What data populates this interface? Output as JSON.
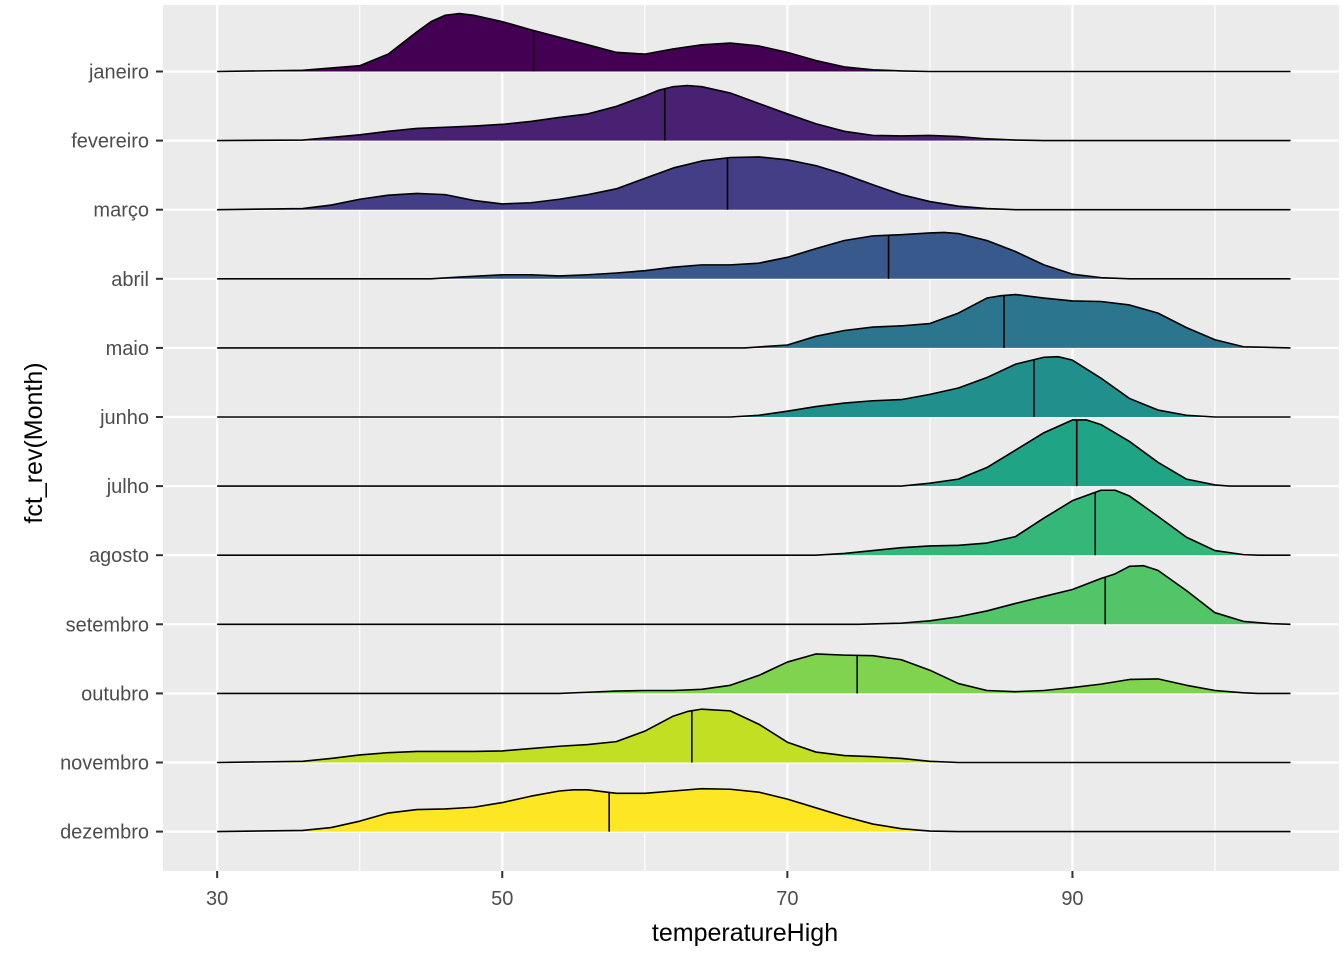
{
  "chart_data": {
    "type": "ridgeline",
    "xlabel": "temperatureHigh",
    "ylabel": "fct_rev(Month)",
    "xlim": [
      26.2,
      108.7
    ],
    "xticks": [
      30,
      50,
      70,
      90
    ],
    "grid": true,
    "legend": "none",
    "series": [
      {
        "name": "janeiro",
        "color": "#440154",
        "median": 52.2,
        "range": [
          30,
          105.3
        ],
        "density": [
          [
            30,
            0
          ],
          [
            36,
            0.02
          ],
          [
            40,
            0.1
          ],
          [
            42,
            0.3
          ],
          [
            44,
            0.68
          ],
          [
            45,
            0.86
          ],
          [
            46,
            0.97
          ],
          [
            47,
            1
          ],
          [
            48,
            0.97
          ],
          [
            50,
            0.86
          ],
          [
            52,
            0.72
          ],
          [
            54,
            0.59
          ],
          [
            56,
            0.46
          ],
          [
            58,
            0.33
          ],
          [
            60,
            0.3
          ],
          [
            62,
            0.39
          ],
          [
            64,
            0.46
          ],
          [
            66,
            0.49
          ],
          [
            68,
            0.44
          ],
          [
            70,
            0.33
          ],
          [
            72,
            0.19
          ],
          [
            74,
            0.08
          ],
          [
            76,
            0.03
          ],
          [
            78,
            0.01
          ],
          [
            80,
            0
          ],
          [
            105.3,
            0
          ]
        ]
      },
      {
        "name": "fevereiro",
        "color": "#482173",
        "median": 61.4,
        "range": [
          30,
          105.3
        ],
        "density": [
          [
            30,
            0
          ],
          [
            36,
            0.01
          ],
          [
            40,
            0.1
          ],
          [
            42,
            0.16
          ],
          [
            44,
            0.21
          ],
          [
            46,
            0.23
          ],
          [
            48,
            0.25
          ],
          [
            50,
            0.28
          ],
          [
            52,
            0.33
          ],
          [
            54,
            0.4
          ],
          [
            56,
            0.46
          ],
          [
            58,
            0.59
          ],
          [
            60,
            0.77
          ],
          [
            61,
            0.87
          ],
          [
            62,
            0.93
          ],
          [
            63,
            0.95
          ],
          [
            64,
            0.93
          ],
          [
            66,
            0.82
          ],
          [
            68,
            0.64
          ],
          [
            70,
            0.46
          ],
          [
            72,
            0.29
          ],
          [
            74,
            0.16
          ],
          [
            76,
            0.09
          ],
          [
            78,
            0.08
          ],
          [
            80,
            0.09
          ],
          [
            82,
            0.07
          ],
          [
            84,
            0.03
          ],
          [
            86,
            0.01
          ],
          [
            88,
            0
          ],
          [
            105.3,
            0
          ]
        ]
      },
      {
        "name": "março",
        "color": "#433E85",
        "median": 65.8,
        "range": [
          30,
          105.3
        ],
        "density": [
          [
            30,
            0
          ],
          [
            36,
            0.02
          ],
          [
            38,
            0.08
          ],
          [
            40,
            0.18
          ],
          [
            42,
            0.25
          ],
          [
            44,
            0.28
          ],
          [
            46,
            0.26
          ],
          [
            48,
            0.16
          ],
          [
            50,
            0.1
          ],
          [
            52,
            0.12
          ],
          [
            54,
            0.18
          ],
          [
            56,
            0.26
          ],
          [
            58,
            0.36
          ],
          [
            60,
            0.54
          ],
          [
            62,
            0.72
          ],
          [
            64,
            0.84
          ],
          [
            66,
            0.9
          ],
          [
            68,
            0.91
          ],
          [
            70,
            0.86
          ],
          [
            72,
            0.76
          ],
          [
            74,
            0.61
          ],
          [
            76,
            0.43
          ],
          [
            78,
            0.26
          ],
          [
            80,
            0.14
          ],
          [
            82,
            0.06
          ],
          [
            84,
            0.02
          ],
          [
            86,
            0
          ],
          [
            105.3,
            0
          ]
        ]
      },
      {
        "name": "abril",
        "color": "#38598C",
        "median": 77.1,
        "range": [
          30,
          105.3
        ],
        "density": [
          [
            30,
            0
          ],
          [
            45,
            0
          ],
          [
            47,
            0.03
          ],
          [
            50,
            0.07
          ],
          [
            52,
            0.07
          ],
          [
            54,
            0.05
          ],
          [
            56,
            0.07
          ],
          [
            58,
            0.1
          ],
          [
            60,
            0.14
          ],
          [
            62,
            0.2
          ],
          [
            64,
            0.24
          ],
          [
            66,
            0.24
          ],
          [
            68,
            0.27
          ],
          [
            70,
            0.37
          ],
          [
            72,
            0.52
          ],
          [
            74,
            0.66
          ],
          [
            76,
            0.74
          ],
          [
            78,
            0.76
          ],
          [
            80,
            0.79
          ],
          [
            81,
            0.8
          ],
          [
            82,
            0.78
          ],
          [
            84,
            0.66
          ],
          [
            86,
            0.47
          ],
          [
            88,
            0.24
          ],
          [
            90,
            0.08
          ],
          [
            92,
            0.02
          ],
          [
            94,
            0
          ],
          [
            105.3,
            0
          ]
        ]
      },
      {
        "name": "maio",
        "color": "#2B758E",
        "median": 85.2,
        "range": [
          30,
          105.3
        ],
        "density": [
          [
            30,
            0
          ],
          [
            67,
            0
          ],
          [
            70,
            0.05
          ],
          [
            72,
            0.2
          ],
          [
            74,
            0.3
          ],
          [
            76,
            0.36
          ],
          [
            78,
            0.38
          ],
          [
            80,
            0.42
          ],
          [
            82,
            0.6
          ],
          [
            84,
            0.86
          ],
          [
            85,
            0.9
          ],
          [
            86,
            0.92
          ],
          [
            88,
            0.86
          ],
          [
            90,
            0.81
          ],
          [
            92,
            0.8
          ],
          [
            94,
            0.74
          ],
          [
            96,
            0.6
          ],
          [
            98,
            0.35
          ],
          [
            100,
            0.14
          ],
          [
            102,
            0.02
          ],
          [
            105.3,
            0
          ]
        ]
      },
      {
        "name": "junho",
        "color": "#21908C",
        "median": 87.3,
        "range": [
          30,
          105.3
        ],
        "density": [
          [
            30,
            0
          ],
          [
            66,
            0
          ],
          [
            68,
            0.03
          ],
          [
            70,
            0.1
          ],
          [
            72,
            0.18
          ],
          [
            74,
            0.24
          ],
          [
            76,
            0.28
          ],
          [
            78,
            0.3
          ],
          [
            80,
            0.39
          ],
          [
            82,
            0.5
          ],
          [
            84,
            0.68
          ],
          [
            86,
            0.91
          ],
          [
            88,
            1.03
          ],
          [
            89,
            1.04
          ],
          [
            90,
            0.98
          ],
          [
            92,
            0.67
          ],
          [
            94,
            0.32
          ],
          [
            96,
            0.12
          ],
          [
            98,
            0.03
          ],
          [
            100,
            0
          ],
          [
            105.3,
            0
          ]
        ]
      },
      {
        "name": "julho",
        "color": "#20A486",
        "median": 90.3,
        "range": [
          30,
          105.3
        ],
        "density": [
          [
            30,
            0
          ],
          [
            78,
            0
          ],
          [
            80,
            0.05
          ],
          [
            82,
            0.12
          ],
          [
            84,
            0.32
          ],
          [
            86,
            0.62
          ],
          [
            88,
            0.92
          ],
          [
            90,
            1.14
          ],
          [
            91,
            1.14
          ],
          [
            92,
            1.06
          ],
          [
            94,
            0.77
          ],
          [
            96,
            0.41
          ],
          [
            98,
            0.12
          ],
          [
            100,
            0.02
          ],
          [
            101,
            0
          ],
          [
            105.3,
            0
          ]
        ]
      },
      {
        "name": "agosto",
        "color": "#35B779",
        "median": 91.6,
        "range": [
          30,
          105.3
        ],
        "density": [
          [
            30,
            0
          ],
          [
            72,
            0
          ],
          [
            74,
            0.03
          ],
          [
            76,
            0.08
          ],
          [
            78,
            0.13
          ],
          [
            80,
            0.16
          ],
          [
            82,
            0.17
          ],
          [
            84,
            0.21
          ],
          [
            86,
            0.32
          ],
          [
            88,
            0.64
          ],
          [
            90,
            0.94
          ],
          [
            92,
            1.12
          ],
          [
            93,
            1.12
          ],
          [
            94,
            1.02
          ],
          [
            96,
            0.67
          ],
          [
            98,
            0.31
          ],
          [
            100,
            0.08
          ],
          [
            102,
            0.01
          ],
          [
            103,
            0
          ],
          [
            105.3,
            0
          ]
        ]
      },
      {
        "name": "setembro",
        "color": "#53C569",
        "median": 92.3,
        "range": [
          30,
          105.3
        ],
        "density": [
          [
            30,
            0
          ],
          [
            75,
            0
          ],
          [
            78,
            0.02
          ],
          [
            80,
            0.06
          ],
          [
            82,
            0.13
          ],
          [
            84,
            0.23
          ],
          [
            86,
            0.36
          ],
          [
            88,
            0.48
          ],
          [
            90,
            0.6
          ],
          [
            92,
            0.79
          ],
          [
            93,
            0.87
          ],
          [
            94,
            1.0
          ],
          [
            95,
            1.01
          ],
          [
            96,
            0.93
          ],
          [
            98,
            0.58
          ],
          [
            100,
            0.2
          ],
          [
            102,
            0.05
          ],
          [
            104,
            0.01
          ],
          [
            105.3,
            0
          ]
        ]
      },
      {
        "name": "outubro",
        "color": "#7FD34E",
        "median": 74.9,
        "range": [
          30,
          105.3
        ],
        "density": [
          [
            30,
            0
          ],
          [
            54,
            0
          ],
          [
            56,
            0.02
          ],
          [
            58,
            0.04
          ],
          [
            60,
            0.05
          ],
          [
            62,
            0.05
          ],
          [
            64,
            0.07
          ],
          [
            66,
            0.14
          ],
          [
            68,
            0.31
          ],
          [
            70,
            0.54
          ],
          [
            72,
            0.68
          ],
          [
            74,
            0.66
          ],
          [
            76,
            0.65
          ],
          [
            78,
            0.58
          ],
          [
            80,
            0.4
          ],
          [
            82,
            0.17
          ],
          [
            84,
            0.05
          ],
          [
            86,
            0.03
          ],
          [
            88,
            0.05
          ],
          [
            90,
            0.1
          ],
          [
            92,
            0.16
          ],
          [
            94,
            0.24
          ],
          [
            96,
            0.25
          ],
          [
            98,
            0.14
          ],
          [
            100,
            0.05
          ],
          [
            102,
            0.01
          ],
          [
            103,
            0
          ],
          [
            105.3,
            0
          ]
        ]
      },
      {
        "name": "novembro",
        "color": "#C2DF23",
        "median": 63.3,
        "range": [
          30,
          105.3
        ],
        "density": [
          [
            30,
            0
          ],
          [
            36,
            0.02
          ],
          [
            38,
            0.07
          ],
          [
            40,
            0.13
          ],
          [
            42,
            0.17
          ],
          [
            44,
            0.19
          ],
          [
            46,
            0.19
          ],
          [
            48,
            0.19
          ],
          [
            50,
            0.2
          ],
          [
            52,
            0.24
          ],
          [
            54,
            0.28
          ],
          [
            56,
            0.31
          ],
          [
            58,
            0.36
          ],
          [
            60,
            0.54
          ],
          [
            62,
            0.8
          ],
          [
            63,
            0.88
          ],
          [
            64,
            0.92
          ],
          [
            66,
            0.89
          ],
          [
            68,
            0.66
          ],
          [
            70,
            0.35
          ],
          [
            72,
            0.18
          ],
          [
            74,
            0.12
          ],
          [
            76,
            0.1
          ],
          [
            78,
            0.07
          ],
          [
            80,
            0.02
          ],
          [
            82,
            0
          ],
          [
            105.3,
            0
          ]
        ]
      },
      {
        "name": "dezembro",
        "color": "#FDE725",
        "median": 57.5,
        "range": [
          30,
          105.3
        ],
        "density": [
          [
            30,
            0
          ],
          [
            36,
            0.02
          ],
          [
            38,
            0.07
          ],
          [
            40,
            0.18
          ],
          [
            42,
            0.32
          ],
          [
            44,
            0.38
          ],
          [
            46,
            0.39
          ],
          [
            48,
            0.42
          ],
          [
            50,
            0.5
          ],
          [
            52,
            0.61
          ],
          [
            54,
            0.7
          ],
          [
            55,
            0.72
          ],
          [
            56,
            0.72
          ],
          [
            58,
            0.66
          ],
          [
            60,
            0.66
          ],
          [
            62,
            0.7
          ],
          [
            64,
            0.74
          ],
          [
            66,
            0.73
          ],
          [
            68,
            0.68
          ],
          [
            70,
            0.56
          ],
          [
            72,
            0.41
          ],
          [
            74,
            0.26
          ],
          [
            76,
            0.13
          ],
          [
            78,
            0.05
          ],
          [
            80,
            0.01
          ],
          [
            82,
            0
          ],
          [
            105.3,
            0
          ]
        ]
      }
    ]
  }
}
